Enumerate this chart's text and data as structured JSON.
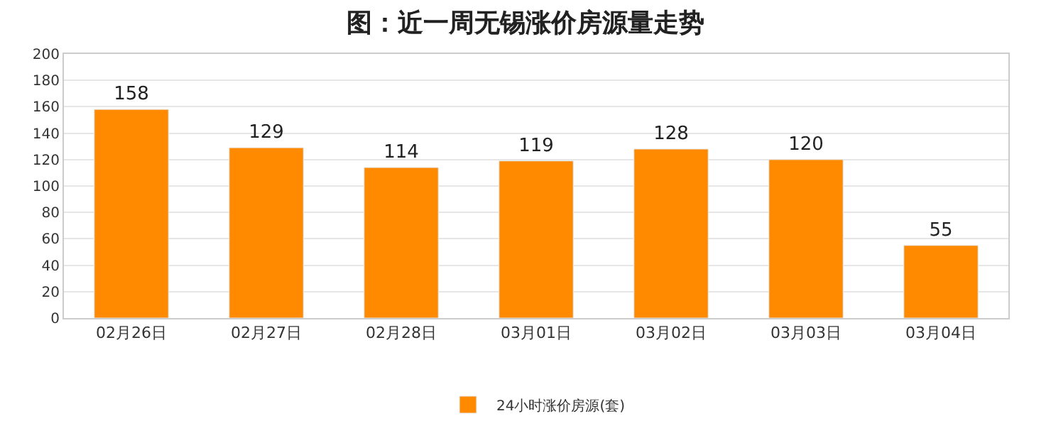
{
  "chart_data": {
    "type": "bar",
    "title": "图：近一周无锡涨价房源量走势",
    "categories": [
      "02月26日",
      "02月27日",
      "02月28日",
      "03月01日",
      "03月02日",
      "03月03日",
      "03月04日"
    ],
    "series": [
      {
        "name": "24小时涨价房源(套)",
        "color": "#ff8a00",
        "values": [
          158,
          129,
          114,
          119,
          128,
          120,
          55
        ]
      }
    ],
    "ylim": [
      0,
      200
    ],
    "yticks": [
      0,
      20,
      40,
      60,
      80,
      100,
      120,
      140,
      160,
      180,
      200
    ],
    "grid": "y",
    "legend": "bottom",
    "data_labels": true
  }
}
